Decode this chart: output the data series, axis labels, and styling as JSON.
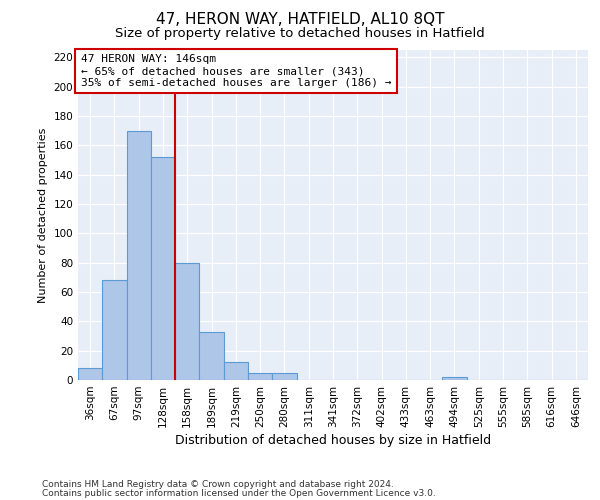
{
  "title": "47, HERON WAY, HATFIELD, AL10 8QT",
  "subtitle": "Size of property relative to detached houses in Hatfield",
  "xlabel": "Distribution of detached houses by size in Hatfield",
  "ylabel": "Number of detached properties",
  "footnote1": "Contains HM Land Registry data © Crown copyright and database right 2024.",
  "footnote2": "Contains public sector information licensed under the Open Government Licence v3.0.",
  "bin_labels": [
    "36sqm",
    "67sqm",
    "97sqm",
    "128sqm",
    "158sqm",
    "189sqm",
    "219sqm",
    "250sqm",
    "280sqm",
    "311sqm",
    "341sqm",
    "372sqm",
    "402sqm",
    "433sqm",
    "463sqm",
    "494sqm",
    "525sqm",
    "555sqm",
    "585sqm",
    "616sqm",
    "646sqm"
  ],
  "bar_heights": [
    8,
    68,
    170,
    152,
    80,
    33,
    12,
    5,
    5,
    0,
    0,
    0,
    0,
    0,
    0,
    2,
    0,
    0,
    0,
    0,
    0
  ],
  "bar_color": "#aec6e8",
  "bar_edge_color": "#5b9bd5",
  "bar_edge_width": 0.8,
  "ylim": [
    0,
    225
  ],
  "yticks": [
    0,
    20,
    40,
    60,
    80,
    100,
    120,
    140,
    160,
    180,
    200,
    220
  ],
  "red_line_x": 4.0,
  "red_line_color": "#cc0000",
  "annotation_line1": "47 HERON WAY: 146sqm",
  "annotation_line2": "← 65% of detached houses are smaller (343)",
  "annotation_line3": "35% of semi-detached houses are larger (186) →",
  "annotation_box_color": "#ffffff",
  "annotation_box_edge": "#cc0000",
  "bg_color": "#e8eef8",
  "grid_color": "#ffffff",
  "title_fontsize": 11,
  "subtitle_fontsize": 9.5,
  "ylabel_fontsize": 8,
  "xlabel_fontsize": 9,
  "tick_fontsize": 7.5,
  "annotation_fontsize": 8,
  "footnote_fontsize": 6.5
}
